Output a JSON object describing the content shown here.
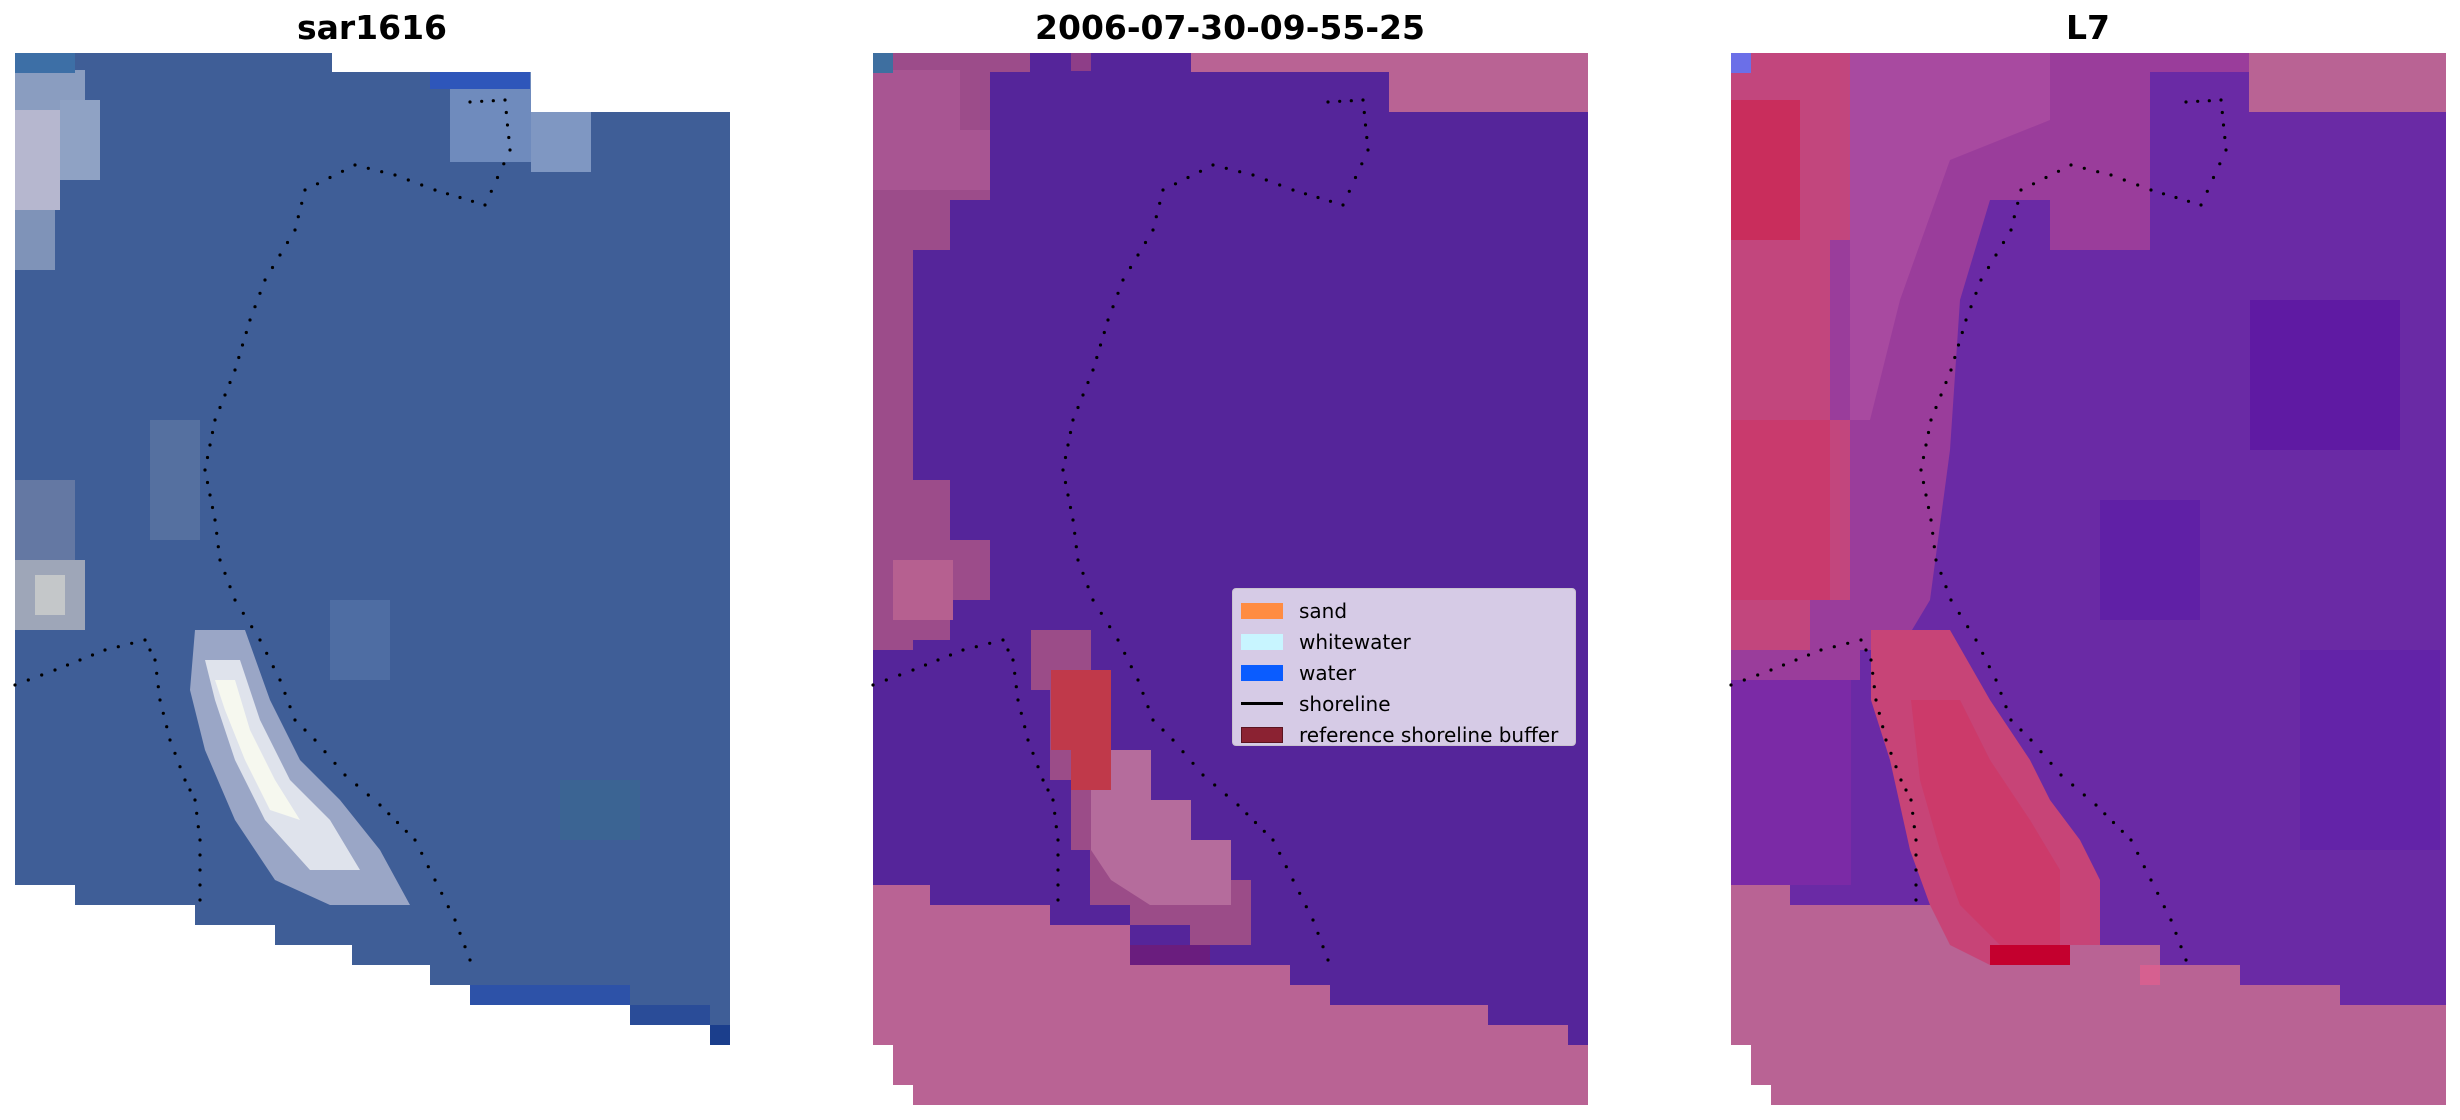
{
  "panels": [
    {
      "title": "sar1616"
    },
    {
      "title": "2006-07-30-09-55-25"
    },
    {
      "title": "L7"
    }
  ],
  "legend": {
    "items": [
      {
        "label": "sand",
        "color": "#ff8c42",
        "kind": "patch"
      },
      {
        "label": "whitewater",
        "color": "#c8f5ff",
        "kind": "patch"
      },
      {
        "label": "water",
        "color": "#0a5cff",
        "kind": "patch"
      },
      {
        "label": "shoreline",
        "color": "#000000",
        "kind": "line"
      },
      {
        "label": "reference shoreline buffer",
        "color": "#8b2232",
        "kind": "patch"
      }
    ]
  },
  "colors": {
    "rgb_water": "#3f5e97",
    "classified_water": "#55259a",
    "classified_nodata": "#b96394",
    "classified_buffer": "#c0394a",
    "index_base": "#6a2aa5",
    "index_land": "#cc3a6a"
  }
}
